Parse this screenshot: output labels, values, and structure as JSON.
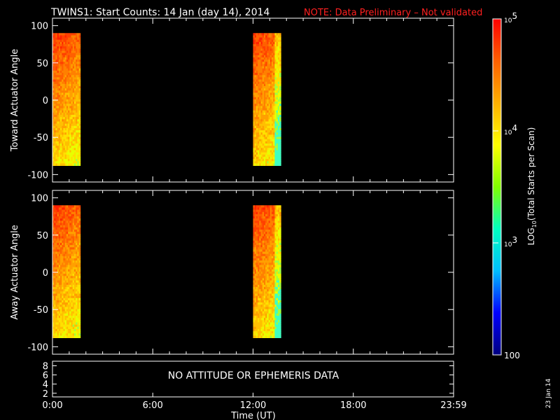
{
  "header": {
    "title": "TWINS1: Start Counts: 14 Jan (day  14), 2014",
    "note": "NOTE: Data Preliminary – Not validated"
  },
  "chart_data": [
    {
      "type": "heatmap",
      "ylabel": "Toward Actuator Angle",
      "ylim": [
        -110,
        110
      ],
      "yticks": [
        "100",
        "50",
        "0",
        "-50",
        "-100"
      ],
      "xlim_hours": [
        0,
        24
      ],
      "data_ranges": [
        {
          "start": "00:00",
          "end": "01:40",
          "angle_range": [
            -88,
            90
          ]
        },
        {
          "start": "12:00",
          "end": "13:40",
          "angle_range": [
            -88,
            90
          ]
        }
      ]
    },
    {
      "type": "heatmap",
      "ylabel": "Away Actuator Angle",
      "ylim": [
        -110,
        110
      ],
      "yticks": [
        "100",
        "50",
        "0",
        "-50",
        "-100"
      ],
      "xlim_hours": [
        0,
        24
      ],
      "data_ranges": [
        {
          "start": "00:00",
          "end": "01:40",
          "angle_range": [
            -88,
            90
          ]
        },
        {
          "start": "12:00",
          "end": "13:40",
          "angle_range": [
            -88,
            90
          ]
        }
      ]
    }
  ],
  "ephemeris_panel": {
    "message": "NO ATTITUDE OR EPHEMERIS DATA",
    "yticks": [
      "8",
      "6",
      "4",
      "2"
    ]
  },
  "x_axis": {
    "ticks": [
      "0:00",
      "6:00",
      "12:00",
      "18:00",
      "23:59"
    ],
    "label": "Time (UT)"
  },
  "colorbar": {
    "label": "LOG10(Total Starts per Scan)",
    "ticks": [
      "10^5",
      "10^4",
      "10^3",
      "100"
    ],
    "scale": "log",
    "range": [
      100,
      100000
    ],
    "colors": [
      "#000080",
      "#0000ff",
      "#00bfff",
      "#00ffbf",
      "#80ff00",
      "#ffff00",
      "#ffb000",
      "#ff6000",
      "#ff0000"
    ]
  },
  "date_stamp": "23 Jan 14"
}
